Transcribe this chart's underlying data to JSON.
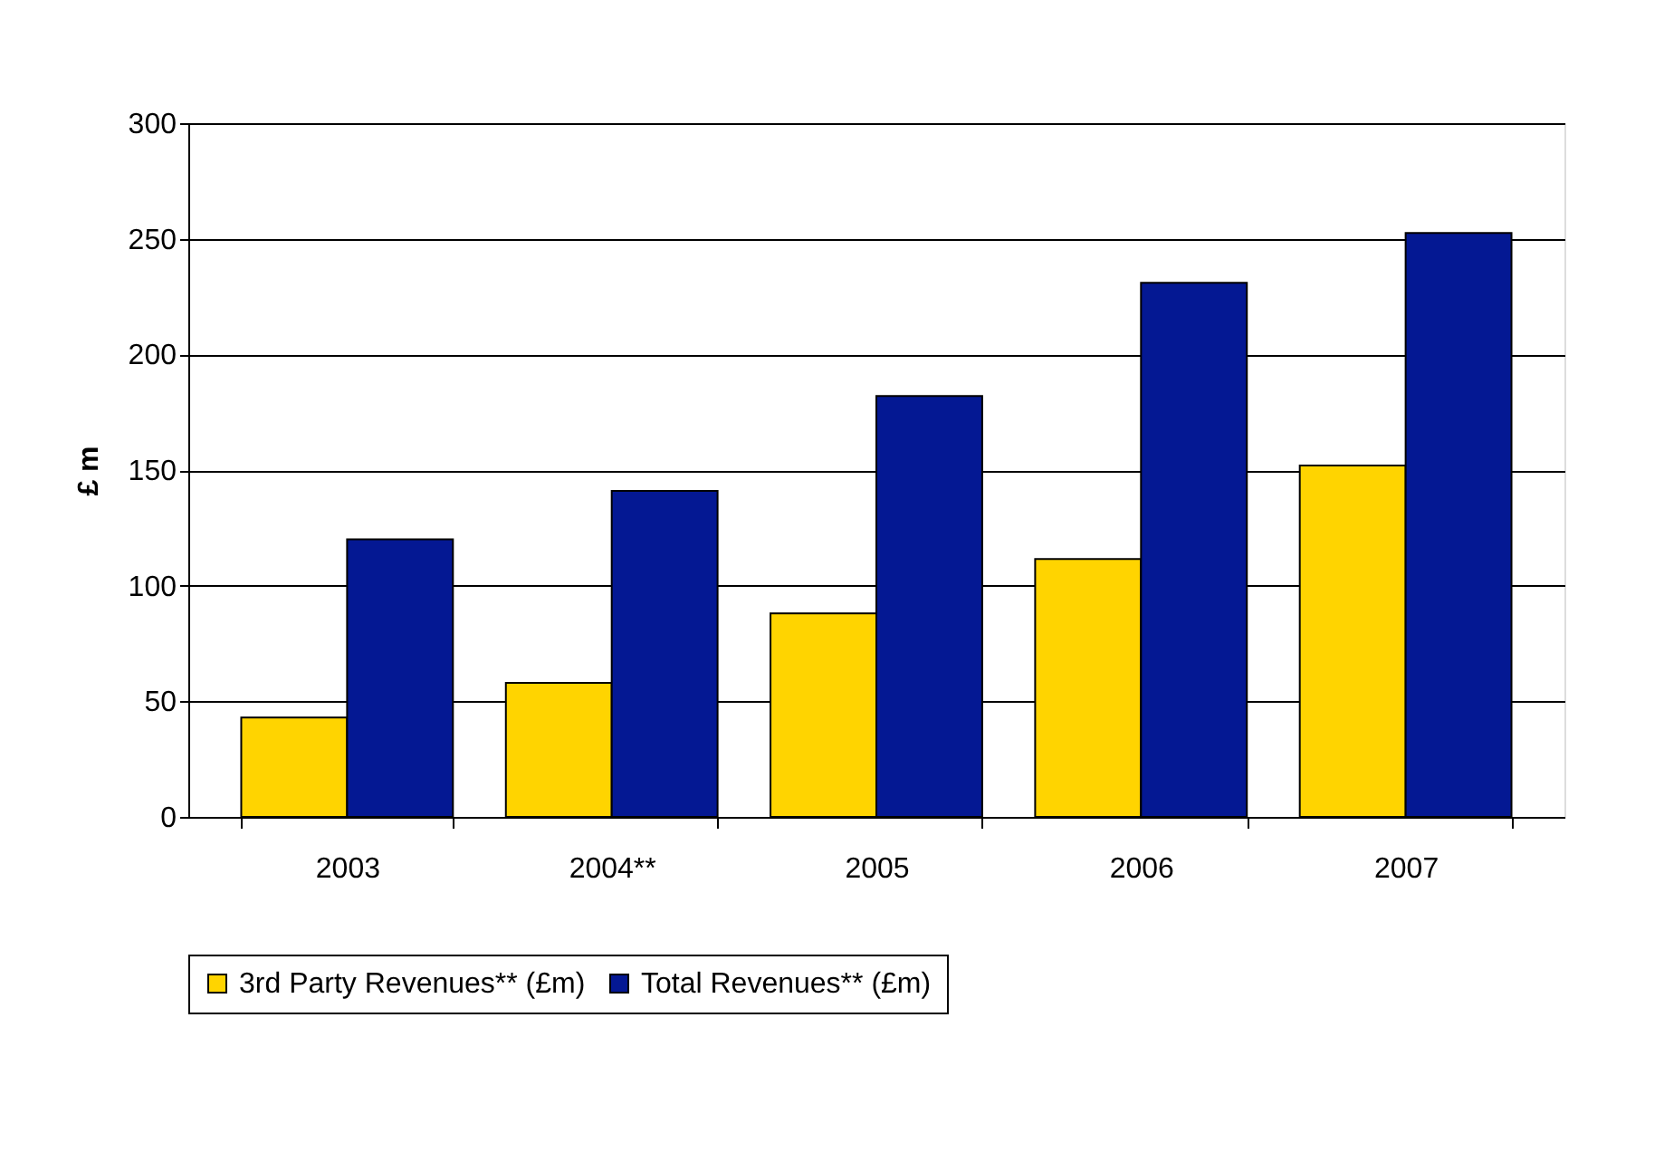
{
  "chart_data": {
    "type": "bar",
    "ylabel": "£ m",
    "categories": [
      "2003",
      "2004**",
      "2005",
      "2006",
      "2007"
    ],
    "series": [
      {
        "name": "3rd Party Revenues** (£m)",
        "color": "#ffd400",
        "values": [
          43,
          58,
          88,
          111.5,
          152
        ]
      },
      {
        "name": "Total Revenues** (£m)",
        "color": "#041893",
        "values": [
          120,
          141,
          182,
          231,
          252.5
        ]
      }
    ],
    "ylim": [
      0,
      300
    ],
    "yticks": [
      0,
      50,
      100,
      150,
      200,
      250,
      300
    ],
    "grid": "y",
    "legend": "bottom"
  }
}
